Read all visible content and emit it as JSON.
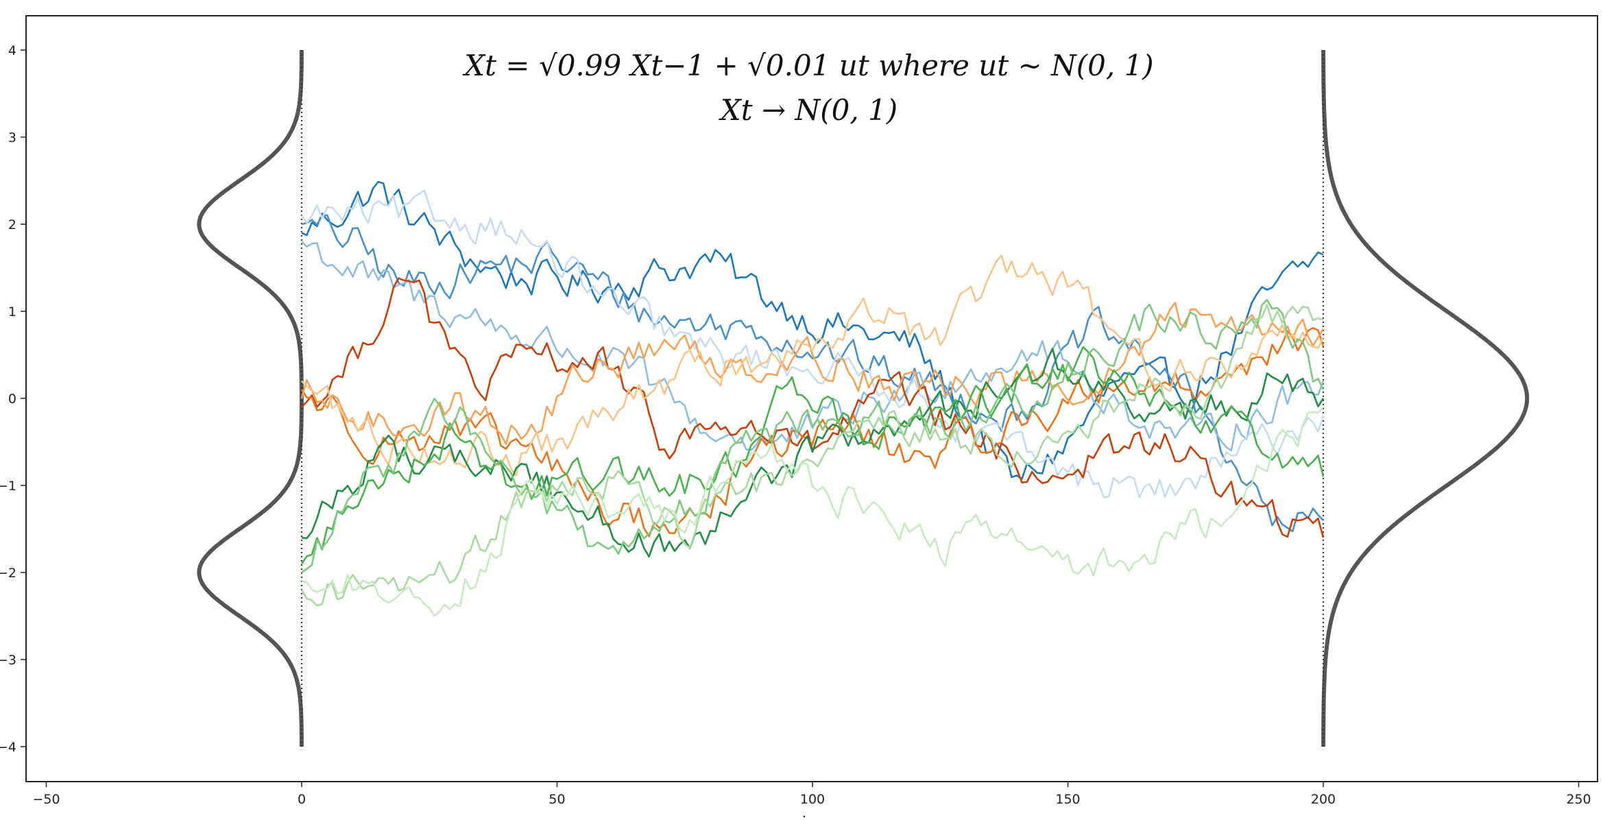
{
  "chart_data": {
    "type": "line",
    "title_line1": "Xt = √0.99 Xt−1 + √0.01 ut     where     ut ~ N(0, 1)",
    "title_line2": "Xt → N(0, 1)",
    "xlabel": "step",
    "ylabel": "",
    "xlim": [
      -50,
      250
    ],
    "ylim": [
      -4,
      4
    ],
    "xticks": [
      -50,
      0,
      50,
      100,
      150,
      200,
      250
    ],
    "yticks": [
      -4,
      -3,
      -2,
      -1,
      0,
      1,
      2,
      3,
      4
    ],
    "grid": false,
    "steps": 200,
    "ar_coefficient": 0.99,
    "noise_coefficient": 0.01,
    "initial_density": {
      "description": "bimodal mixture at step 0",
      "components": [
        {
          "mean": -2,
          "sd": 0.5,
          "weight": 0.5
        },
        {
          "mean": 2,
          "sd": 0.5,
          "weight": 0.5
        }
      ],
      "drawn_to_left_of": 0
    },
    "final_density": {
      "description": "standard normal at step 200",
      "components": [
        {
          "mean": 0,
          "sd": 1,
          "weight": 1
        }
      ],
      "drawn_to_right_of": 200
    },
    "density_color": "#555555",
    "series": [
      {
        "color": "#1f77b4",
        "start": 1.9,
        "end": 1.65,
        "shape": [
          [
            0,
            1.9
          ],
          [
            15,
            2.4
          ],
          [
            30,
            1.7
          ],
          [
            40,
            1.4
          ],
          [
            60,
            1.3
          ],
          [
            80,
            1.6
          ],
          [
            90,
            1.2
          ],
          [
            100,
            0.9
          ],
          [
            120,
            0.6
          ],
          [
            130,
            -0.2
          ],
          [
            140,
            -1.0
          ],
          [
            150,
            -0.5
          ],
          [
            160,
            0.2
          ],
          [
            175,
            0.1
          ],
          [
            190,
            1.2
          ],
          [
            200,
            1.65
          ]
        ]
      },
      {
        "color": "#4a90c4",
        "start": 2.0,
        "end": -1.4,
        "shape": [
          [
            0,
            2.0
          ],
          [
            10,
            1.8
          ],
          [
            20,
            1.3
          ],
          [
            35,
            1.5
          ],
          [
            50,
            1.6
          ],
          [
            70,
            0.9
          ],
          [
            90,
            0.8
          ],
          [
            110,
            0.4
          ],
          [
            125,
            0.1
          ],
          [
            140,
            -0.2
          ],
          [
            155,
            0.8
          ],
          [
            170,
            0.3
          ],
          [
            185,
            -0.9
          ],
          [
            190,
            -1.5
          ],
          [
            200,
            -1.4
          ]
        ]
      },
      {
        "color": "#8fbcdc",
        "start": 1.8,
        "end": 0.2,
        "shape": [
          [
            0,
            1.8
          ],
          [
            15,
            1.3
          ],
          [
            30,
            1.0
          ],
          [
            50,
            0.6
          ],
          [
            65,
            0.3
          ],
          [
            80,
            -0.4
          ],
          [
            95,
            -0.5
          ],
          [
            110,
            -0.1
          ],
          [
            130,
            0.3
          ],
          [
            145,
            0.6
          ],
          [
            160,
            -0.1
          ],
          [
            175,
            -0.5
          ],
          [
            190,
            -0.1
          ],
          [
            200,
            0.2
          ]
        ]
      },
      {
        "color": "#c6dbef",
        "start": 2.1,
        "end": -0.2,
        "shape": [
          [
            0,
            2.1
          ],
          [
            20,
            2.1
          ],
          [
            40,
            2.0
          ],
          [
            60,
            1.1
          ],
          [
            80,
            0.5
          ],
          [
            100,
            0.4
          ],
          [
            115,
            0.2
          ],
          [
            130,
            -0.3
          ],
          [
            150,
            -0.9
          ],
          [
            170,
            -1.1
          ],
          [
            185,
            -0.6
          ],
          [
            200,
            -0.2
          ]
        ]
      },
      {
        "color": "#c2410c",
        "start": -0.1,
        "end": -1.6,
        "shape": [
          [
            0,
            -0.1
          ],
          [
            10,
            0.4
          ],
          [
            20,
            1.5
          ],
          [
            28,
            0.6
          ],
          [
            35,
            0.1
          ],
          [
            45,
            0.5
          ],
          [
            60,
            0.4
          ],
          [
            70,
            -0.5
          ],
          [
            85,
            -0.3
          ],
          [
            100,
            -0.6
          ],
          [
            115,
            0.1
          ],
          [
            130,
            -0.4
          ],
          [
            145,
            -0.9
          ],
          [
            160,
            -0.6
          ],
          [
            170,
            -0.5
          ],
          [
            180,
            -1.0
          ],
          [
            190,
            -1.4
          ],
          [
            200,
            -1.6
          ]
        ]
      },
      {
        "color": "#e6751f",
        "start": 0.1,
        "end": 0.6,
        "shape": [
          [
            0,
            0.1
          ],
          [
            15,
            -0.5
          ],
          [
            30,
            -0.4
          ],
          [
            45,
            -0.6
          ],
          [
            60,
            -1.3
          ],
          [
            75,
            -1.5
          ],
          [
            90,
            -0.6
          ],
          [
            105,
            -0.3
          ],
          [
            120,
            -0.7
          ],
          [
            140,
            -0.3
          ],
          [
            160,
            0.2
          ],
          [
            175,
            0.1
          ],
          [
            190,
            0.6
          ],
          [
            200,
            0.6
          ]
        ]
      },
      {
        "color": "#f4a259",
        "start": 0.0,
        "end": 0.8,
        "shape": [
          [
            0,
            0.0
          ],
          [
            15,
            -0.3
          ],
          [
            30,
            -0.1
          ],
          [
            45,
            -0.4
          ],
          [
            55,
            0.3
          ],
          [
            70,
            0.6
          ],
          [
            85,
            0.4
          ],
          [
            100,
            0.5
          ],
          [
            120,
            0.1
          ],
          [
            140,
            0.2
          ],
          [
            155,
            0.0
          ],
          [
            170,
            0.9
          ],
          [
            185,
            0.9
          ],
          [
            200,
            0.8
          ]
        ]
      },
      {
        "color": "#f8c48c",
        "start": 0.2,
        "end": 0.7,
        "shape": [
          [
            0,
            0.2
          ],
          [
            15,
            -0.5
          ],
          [
            30,
            -0.6
          ],
          [
            45,
            -0.7
          ],
          [
            60,
            -0.2
          ],
          [
            75,
            0.3
          ],
          [
            95,
            0.5
          ],
          [
            110,
            1.1
          ],
          [
            125,
            0.6
          ],
          [
            135,
            1.4
          ],
          [
            150,
            1.3
          ],
          [
            165,
            0.4
          ],
          [
            180,
            0.3
          ],
          [
            190,
            0.7
          ],
          [
            200,
            0.7
          ]
        ]
      },
      {
        "color": "#238b45",
        "start": -1.6,
        "end": 0.0,
        "shape": [
          [
            0,
            -1.6
          ],
          [
            15,
            -0.6
          ],
          [
            30,
            -0.7
          ],
          [
            45,
            -0.9
          ],
          [
            60,
            -1.4
          ],
          [
            75,
            -1.9
          ],
          [
            90,
            -1.0
          ],
          [
            100,
            -0.6
          ],
          [
            115,
            -0.3
          ],
          [
            125,
            -0.2
          ],
          [
            140,
            0.2
          ],
          [
            150,
            0.4
          ],
          [
            165,
            -0.2
          ],
          [
            180,
            -0.1
          ],
          [
            190,
            0.2
          ],
          [
            200,
            0.0
          ]
        ]
      },
      {
        "color": "#4caf50",
        "start": -1.9,
        "end": -0.9,
        "shape": [
          [
            0,
            -1.9
          ],
          [
            15,
            -0.9
          ],
          [
            30,
            -0.4
          ],
          [
            45,
            -1.1
          ],
          [
            60,
            -0.8
          ],
          [
            75,
            -1.0
          ],
          [
            85,
            -0.8
          ],
          [
            95,
            0.3
          ],
          [
            110,
            -0.4
          ],
          [
            125,
            -0.3
          ],
          [
            140,
            0.1
          ],
          [
            155,
            0.4
          ],
          [
            170,
            -0.2
          ],
          [
            185,
            -0.4
          ],
          [
            200,
            -0.9
          ]
        ]
      },
      {
        "color": "#80c780",
        "start": -2.0,
        "end": 0.1,
        "shape": [
          [
            0,
            -2.0
          ],
          [
            15,
            -0.8
          ],
          [
            30,
            -0.1
          ],
          [
            40,
            -0.9
          ],
          [
            50,
            -1.3
          ],
          [
            60,
            -1.9
          ],
          [
            75,
            -1.3
          ],
          [
            90,
            -0.4
          ],
          [
            105,
            -0.2
          ],
          [
            120,
            -0.3
          ],
          [
            135,
            -0.2
          ],
          [
            150,
            0.3
          ],
          [
            165,
            0.9
          ],
          [
            180,
            0.7
          ],
          [
            190,
            1.1
          ],
          [
            200,
            0.1
          ]
        ]
      },
      {
        "color": "#a8d8a0",
        "start": -2.2,
        "end": 0.9,
        "shape": [
          [
            0,
            -2.2
          ],
          [
            15,
            -2.2
          ],
          [
            30,
            -2.0
          ],
          [
            45,
            -1.1
          ],
          [
            60,
            -0.9
          ],
          [
            75,
            -1.5
          ],
          [
            90,
            -1.0
          ],
          [
            100,
            -0.5
          ],
          [
            115,
            -0.3
          ],
          [
            130,
            -0.5
          ],
          [
            150,
            -0.6
          ],
          [
            165,
            0.2
          ],
          [
            175,
            -0.1
          ],
          [
            190,
            0.9
          ],
          [
            200,
            0.9
          ]
        ]
      },
      {
        "color": "#c7e9c0",
        "start": -2.1,
        "end": -0.1,
        "shape": [
          [
            0,
            -2.1
          ],
          [
            15,
            -2.2
          ],
          [
            30,
            -2.3
          ],
          [
            45,
            -1.1
          ],
          [
            60,
            -1.2
          ],
          [
            75,
            -1.4
          ],
          [
            90,
            -0.6
          ],
          [
            110,
            -1.3
          ],
          [
            125,
            -1.7
          ],
          [
            140,
            -1.5
          ],
          [
            150,
            -1.9
          ],
          [
            165,
            -1.8
          ],
          [
            180,
            -1.3
          ],
          [
            190,
            -0.7
          ],
          [
            200,
            -0.1
          ]
        ]
      }
    ]
  }
}
